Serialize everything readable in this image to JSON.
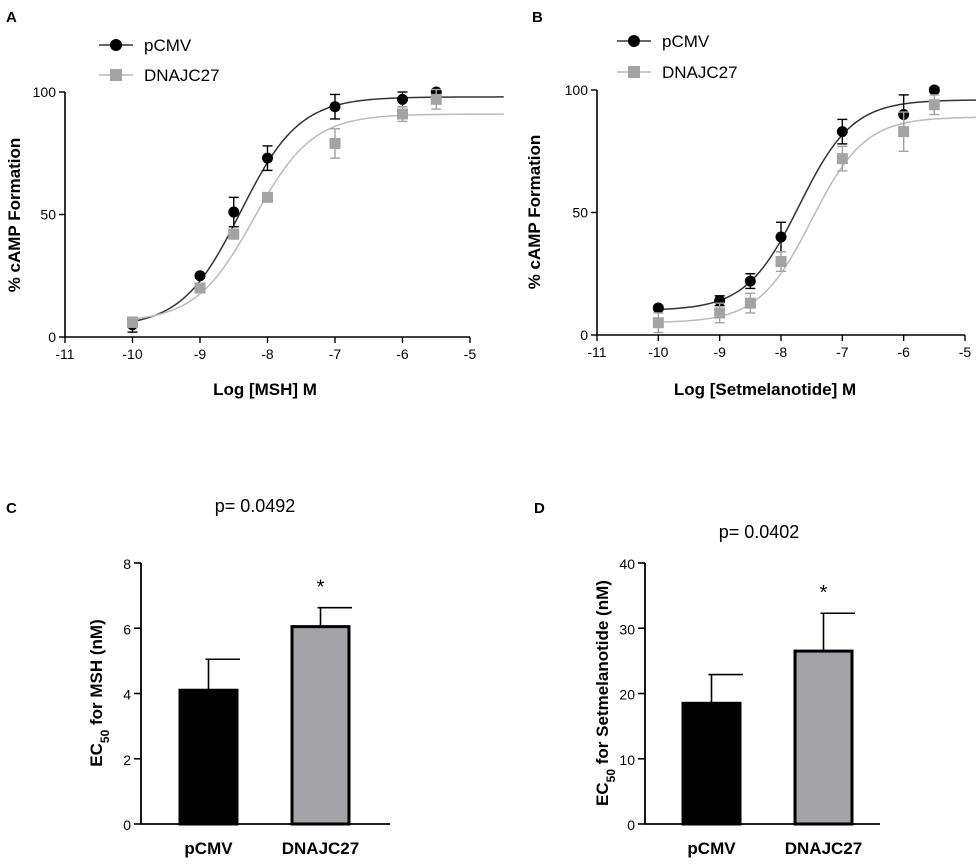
{
  "chart_data": [
    {
      "panel": "A",
      "type": "line",
      "xlabel": "Log [MSH] M",
      "ylabel": "% cAMP Formation",
      "xlim": [
        -11,
        -5
      ],
      "ylim": [
        0,
        100
      ],
      "xticks": [
        -11,
        -10,
        -9,
        -8,
        -7,
        -6,
        -5
      ],
      "yticks": [
        0,
        50,
        100
      ],
      "legend_position": "top-left",
      "series": [
        {
          "name": "pCMV",
          "marker": "circle",
          "color": "#000000",
          "curve_color": "#333333",
          "x": [
            -10,
            -9,
            -8.5,
            -8,
            -7,
            -6,
            -5.5
          ],
          "y": [
            5,
            25,
            51,
            73,
            94,
            97,
            100
          ],
          "err": [
            3,
            1,
            6,
            5,
            5,
            3,
            1
          ],
          "fit": {
            "bottom": 4,
            "top": 98,
            "logec50": -8.4,
            "hill": 1
          }
        },
        {
          "name": "DNAJC27",
          "marker": "square",
          "color": "#a3a3a3",
          "curve_color": "#bbbbbb",
          "x": [
            -10,
            -9,
            -8.5,
            -8,
            -7,
            -6,
            -5.5
          ],
          "y": [
            6,
            20,
            42,
            57,
            79,
            91,
            97
          ],
          "err": [
            2,
            1,
            2,
            1,
            6,
            3,
            4
          ],
          "fit": {
            "bottom": 6,
            "top": 91,
            "logec50": -8.2,
            "hill": 1
          }
        }
      ]
    },
    {
      "panel": "B",
      "type": "line",
      "xlabel": "Log [Setmelanotide] M",
      "ylabel": "% cAMP Formation",
      "xlim": [
        -11,
        -5
      ],
      "ylim": [
        0,
        100
      ],
      "xticks": [
        -11,
        -10,
        -9,
        -8,
        -7,
        -6,
        -5
      ],
      "yticks": [
        0,
        50,
        100
      ],
      "legend_position": "top-left",
      "series": [
        {
          "name": "pCMV",
          "marker": "circle",
          "color": "#000000",
          "curve_color": "#333333",
          "x": [
            -10,
            -9,
            -8.5,
            -8,
            -7,
            -6,
            -5.5
          ],
          "y": [
            11,
            14,
            22,
            40,
            83,
            90,
            100
          ],
          "err": [
            1,
            2,
            3,
            6,
            5,
            8,
            1
          ],
          "fit": {
            "bottom": 10,
            "top": 96,
            "logec50": -7.7,
            "hill": 1
          }
        },
        {
          "name": "DNAJC27",
          "marker": "square",
          "color": "#a3a3a3",
          "curve_color": "#bbbbbb",
          "x": [
            -10,
            -9,
            -8.5,
            -8,
            -7,
            -6,
            -5.5
          ],
          "y": [
            5,
            9,
            13,
            30,
            72,
            83,
            94
          ],
          "err": [
            4,
            4,
            4,
            4,
            5,
            8,
            4
          ],
          "fit": {
            "bottom": 5,
            "top": 89,
            "logec50": -7.5,
            "hill": 1
          }
        }
      ]
    },
    {
      "panel": "C",
      "type": "bar",
      "title": "p= 0.0492",
      "ylabel_main": "EC",
      "ylabel_sub": "50",
      "ylabel_rest": " for MSH (nM)",
      "categories": [
        "pCMV",
        "DNAJC27"
      ],
      "values": [
        4.1,
        6.05
      ],
      "errors": [
        0.95,
        0.58
      ],
      "colors": [
        "#000000",
        "#a3a3a7"
      ],
      "ylim": [
        0,
        8
      ],
      "yticks": [
        0,
        2,
        4,
        6,
        8
      ],
      "annotation": "*"
    },
    {
      "panel": "D",
      "type": "bar",
      "title": "p= 0.0402",
      "ylabel_main": "EC",
      "ylabel_sub": "50",
      "ylabel_rest": " for Setmelanotide (nM)",
      "categories": [
        "pCMV",
        "DNAJC27"
      ],
      "values": [
        18.5,
        26.5
      ],
      "errors": [
        4.4,
        5.8
      ],
      "colors": [
        "#000000",
        "#a3a3a7"
      ],
      "ylim": [
        0,
        40
      ],
      "yticks": [
        0,
        10,
        20,
        30,
        40
      ],
      "annotation": "*"
    }
  ]
}
